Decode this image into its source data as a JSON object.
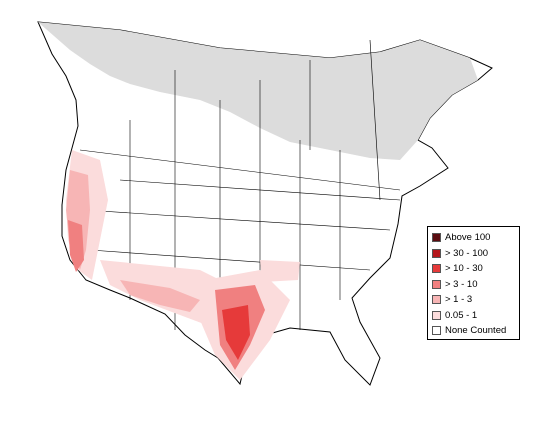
{
  "map": {
    "land_color": "#ffffff",
    "border_color": "#000000",
    "none_area_color": "#dcdcdc"
  },
  "legend": {
    "items": [
      {
        "label": "Above 100",
        "color": "#5a0c10"
      },
      {
        "label": "> 30 - 100",
        "color": "#b5161c"
      },
      {
        "label": "> 10 - 30",
        "color": "#e63a3a"
      },
      {
        "label": "> 3 - 10",
        "color": "#f08080"
      },
      {
        "label": "> 1 - 3",
        "color": "#f7b5b5"
      },
      {
        "label": "0.05 - 1",
        "color": "#fbdcdc"
      },
      {
        "label": "None Counted",
        "color": "#ffffff"
      }
    ]
  }
}
